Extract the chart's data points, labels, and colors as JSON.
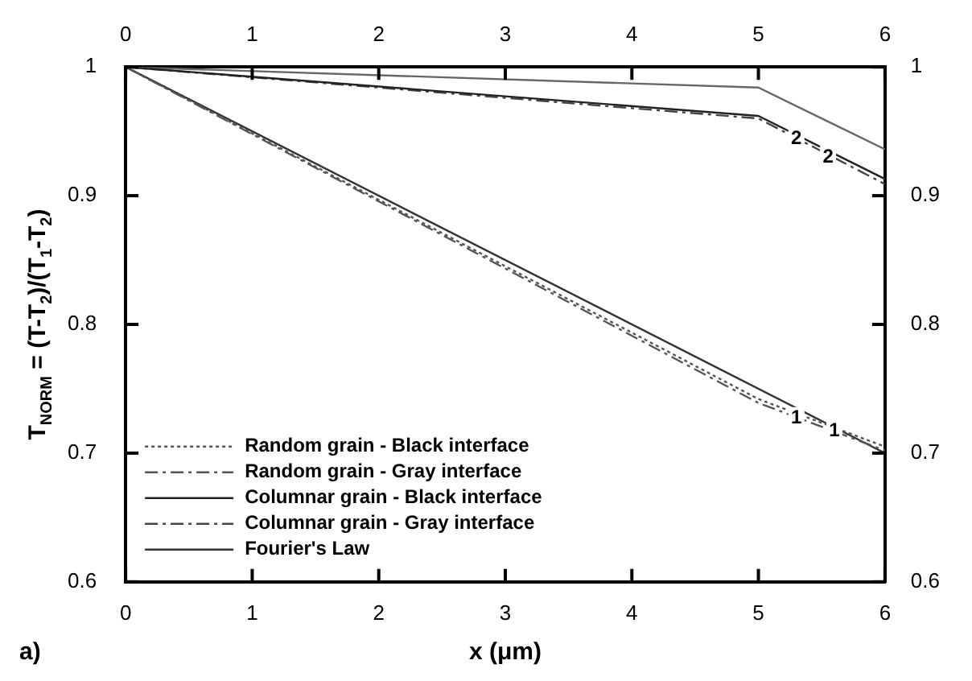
{
  "chart_data": {
    "type": "line",
    "xlabel": "x (μm)",
    "ylabel": "T$_{NORM}$ = (T-T$_{2}$)/(T$_{1}$-T$_{2}$)",
    "xlim": [
      0,
      6
    ],
    "xticks": [
      0,
      1,
      2,
      3,
      4,
      5,
      6
    ],
    "x2lim": [
      0,
      6
    ],
    "x2ticks": [
      0,
      1,
      2,
      3,
      4,
      5,
      6
    ],
    "ylim": [
      0.6,
      1
    ],
    "yticks": [
      0.6,
      0.7,
      0.8,
      0.9,
      1
    ],
    "y2lim": [
      0.6,
      1
    ],
    "y2ticks": [
      0.6,
      0.7,
      0.8,
      0.9,
      1
    ],
    "grid": false,
    "legend": "bottom left",
    "marker": "none",
    "series": [
      {
        "name": "Random grain - Black interface",
        "color": "#555555",
        "line_style": "dotted",
        "x": [
          0,
          5,
          6
        ],
        "values": [
          1,
          0.742,
          0.705
        ]
      },
      {
        "name": "Random grain - Gray interface",
        "color": "#555555",
        "line_style": "dashed",
        "x": [
          0,
          5,
          6
        ],
        "values": [
          1,
          0.739,
          0.702
        ]
      },
      {
        "name": "Columnar grain - Black interface",
        "color": "#222222",
        "line_style": "solid",
        "x": [
          0,
          5,
          6
        ],
        "values": [
          1,
          0.962,
          0.913
        ]
      },
      {
        "name": "Columnar grain - Gray interface",
        "color": "#444444",
        "line_style": "dashed",
        "x": [
          0,
          5,
          6
        ],
        "values": [
          1,
          0.96,
          0.909
        ]
      },
      {
        "name": "Fourier's Law",
        "color": "#333333",
        "line_style": "solid",
        "x": [
          0,
          6
        ],
        "values": [
          1,
          0.7
        ]
      },
      {
        "color": "#666666",
        "line_style": "solid",
        "x": [
          0,
          5,
          6
        ],
        "values": [
          1,
          0.984,
          0.936
        ]
      }
    ],
    "annotations": [
      {
        "text": "1",
        "x": 5.3,
        "y": 0.727
      },
      {
        "text": "1",
        "x": 5.6,
        "y": 0.717
      },
      {
        "text": "2",
        "x": 5.3,
        "y": 0.944
      },
      {
        "text": "2",
        "x": 5.55,
        "y": 0.93
      },
      "a)"
    ]
  }
}
